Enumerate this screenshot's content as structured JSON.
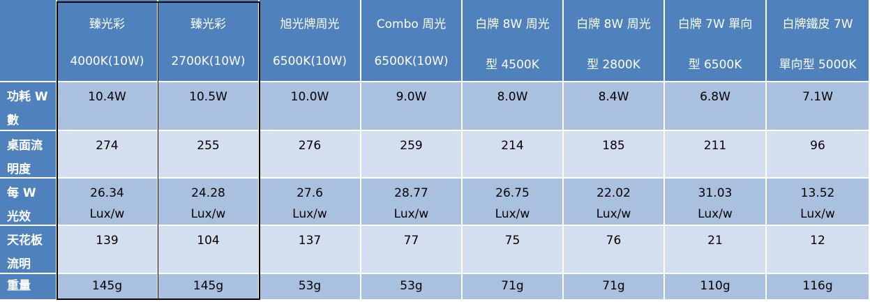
{
  "table": {
    "header": [
      [
        "臻光彩",
        "4000K(10W)"
      ],
      [
        "臻光彩",
        "2700K(10W)"
      ],
      [
        "旭光牌周光",
        "6500K(10W)"
      ],
      [
        "Combo 周光",
        "6500K(10W)"
      ],
      [
        "白牌 8W 周光",
        "型 4500K"
      ],
      [
        "白牌 8W 周光",
        "型 2800K"
      ],
      [
        "白牌 7W 單向",
        "型 6500K"
      ],
      [
        "白牌鐵皮 7W",
        "單向型 5000K"
      ]
    ],
    "rows": [
      {
        "label": [
          "功耗 W",
          "數"
        ],
        "cells": [
          [
            "10.4W"
          ],
          [
            "10.5W"
          ],
          [
            "10.0W"
          ],
          [
            "9.0W"
          ],
          [
            "8.0W"
          ],
          [
            "8.4W"
          ],
          [
            "6.8W"
          ],
          [
            "7.1W"
          ]
        ]
      },
      {
        "label": [
          "桌面流",
          "明度"
        ],
        "cells": [
          [
            "274"
          ],
          [
            "255"
          ],
          [
            "276"
          ],
          [
            "259"
          ],
          [
            "214"
          ],
          [
            "185"
          ],
          [
            "211"
          ],
          [
            "96"
          ]
        ]
      },
      {
        "label": [
          "每 W",
          "光效"
        ],
        "cells": [
          [
            "26.34",
            "Lux/w"
          ],
          [
            "24.28",
            "Lux/w"
          ],
          [
            "27.6",
            "Lux/w"
          ],
          [
            "28.77",
            "Lux/w"
          ],
          [
            "26.75",
            "Lux/w"
          ],
          [
            "22.02",
            "Lux/w"
          ],
          [
            "31.03",
            "Lux/w"
          ],
          [
            "13.52",
            "Lux/w"
          ]
        ]
      },
      {
        "label": [
          "天花板",
          "流明"
        ],
        "cells": [
          [
            "139"
          ],
          [
            "104"
          ],
          [
            "137"
          ],
          [
            "77"
          ],
          [
            "75"
          ],
          [
            "76"
          ],
          [
            "21"
          ],
          [
            "12"
          ]
        ]
      },
      {
        "label": [
          "重量"
        ],
        "cells": [
          [
            "145g"
          ],
          [
            "145g"
          ],
          [
            "53g"
          ],
          [
            "53g"
          ],
          [
            "71g"
          ],
          [
            "71g"
          ],
          [
            "110g"
          ],
          [
            "116g"
          ]
        ]
      }
    ]
  }
}
